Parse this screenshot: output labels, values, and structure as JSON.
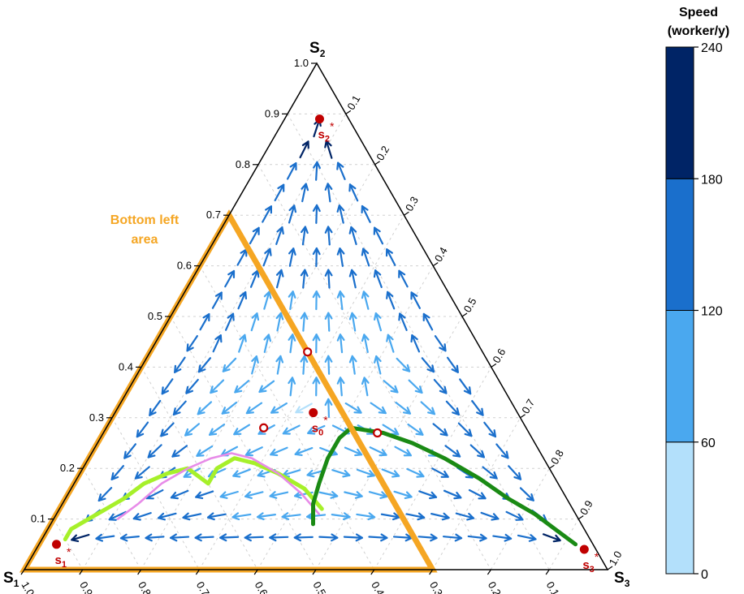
{
  "chart_data": {
    "type": "ternary-vector-field",
    "vertices": {
      "top": "S",
      "top_sub": "2",
      "left": "S",
      "left_sub": "1",
      "right": "S",
      "right_sub": "3"
    },
    "left_axis_ticks": [
      "0.1",
      "0.2",
      "0.3",
      "0.4",
      "0.5",
      "0.6",
      "0.7",
      "0.8",
      "0.9",
      "1.0"
    ],
    "right_axis_ticks": [
      "0.1",
      "0.2",
      "0.3",
      "0.4",
      "0.5",
      "0.6",
      "0.7",
      "0.8",
      "0.9",
      "1.0"
    ],
    "bottom_axis_ticks": [
      "1.0",
      "0.9",
      "0.8",
      "0.7",
      "0.6",
      "0.5",
      "0.4",
      "0.3",
      "0.2",
      "0.1"
    ],
    "colorbar": {
      "title_line1": "Speed",
      "title_line2": "(worker/y)",
      "ticks": [
        "0",
        "60",
        "120",
        "180",
        "240"
      ],
      "bins": [
        {
          "from": 0,
          "to": 60,
          "color": "#b3e0fb"
        },
        {
          "from": 60,
          "to": 120,
          "color": "#4aa8ef"
        },
        {
          "from": 120,
          "to": 180,
          "color": "#1a6fcc"
        },
        {
          "from": 180,
          "to": 240,
          "color": "#002466"
        }
      ],
      "range": [
        0,
        240
      ]
    },
    "annotation": {
      "line1": "Bottom left",
      "line2": "area",
      "color": "#f5a623"
    },
    "region_polygon": [
      [
        1.0,
        0.0,
        0.0
      ],
      [
        0.3,
        0.7,
        0.0
      ],
      [
        0.3,
        0.0,
        0.7
      ]
    ],
    "equilibria": [
      {
        "label": "s",
        "sub": "1",
        "star": "*",
        "s1": 0.92,
        "s2": 0.05,
        "s3": 0.03,
        "filled": true
      },
      {
        "label": "s",
        "sub": "2",
        "star": "*",
        "s1": 0.05,
        "s2": 0.89,
        "s3": 0.06,
        "filled": true
      },
      {
        "label": "s",
        "sub": "3",
        "star": "*",
        "s1": 0.02,
        "s2": 0.04,
        "s3": 0.94,
        "filled": true
      },
      {
        "label": "s",
        "sub": "0",
        "star": "*",
        "s1": 0.35,
        "s2": 0.31,
        "s3": 0.34,
        "filled": true
      },
      {
        "label": "",
        "sub": "",
        "star": "",
        "s1": 0.3,
        "s2": 0.43,
        "s3": 0.27,
        "filled": false
      },
      {
        "label": "",
        "sub": "",
        "star": "",
        "s1": 0.45,
        "s2": 0.28,
        "s3": 0.27,
        "filled": false
      },
      {
        "label": "",
        "sub": "",
        "star": "",
        "s1": 0.26,
        "s2": 0.27,
        "s3": 0.47,
        "filled": false
      }
    ],
    "trajectories": [
      {
        "color": "#a6f02a",
        "points": [
          [
            0.9,
            0.06,
            0.04
          ],
          [
            0.88,
            0.08,
            0.04
          ],
          [
            0.84,
            0.1,
            0.06
          ],
          [
            0.8,
            0.12,
            0.08
          ],
          [
            0.76,
            0.14,
            0.1
          ],
          [
            0.71,
            0.17,
            0.12
          ],
          [
            0.66,
            0.19,
            0.15
          ],
          [
            0.62,
            0.2,
            0.18
          ],
          [
            0.6,
            0.17,
            0.23
          ],
          [
            0.57,
            0.2,
            0.23
          ],
          [
            0.53,
            0.22,
            0.25
          ],
          [
            0.5,
            0.21,
            0.29
          ],
          [
            0.47,
            0.19,
            0.34
          ],
          [
            0.44,
            0.16,
            0.4
          ],
          [
            0.43,
            0.12,
            0.45
          ]
        ]
      },
      {
        "color": "#e78be8",
        "points": [
          [
            0.79,
            0.1,
            0.11
          ],
          [
            0.74,
            0.13,
            0.13
          ],
          [
            0.68,
            0.17,
            0.15
          ],
          [
            0.62,
            0.2,
            0.18
          ],
          [
            0.57,
            0.22,
            0.21
          ],
          [
            0.53,
            0.23,
            0.24
          ],
          [
            0.5,
            0.22,
            0.28
          ],
          [
            0.47,
            0.19,
            0.34
          ],
          [
            0.45,
            0.15,
            0.4
          ],
          [
            0.44,
            0.11,
            0.45
          ]
        ]
      },
      {
        "color": "#1a8a14",
        "points": [
          [
            0.46,
            0.09,
            0.45
          ],
          [
            0.44,
            0.13,
            0.43
          ],
          [
            0.41,
            0.17,
            0.42
          ],
          [
            0.37,
            0.22,
            0.41
          ],
          [
            0.33,
            0.26,
            0.41
          ],
          [
            0.3,
            0.28,
            0.42
          ],
          [
            0.25,
            0.27,
            0.48
          ],
          [
            0.21,
            0.25,
            0.54
          ],
          [
            0.17,
            0.22,
            0.61
          ],
          [
            0.13,
            0.18,
            0.69
          ],
          [
            0.1,
            0.14,
            0.76
          ],
          [
            0.07,
            0.11,
            0.82
          ],
          [
            0.05,
            0.08,
            0.87
          ],
          [
            0.03,
            0.05,
            0.92
          ]
        ]
      }
    ]
  }
}
